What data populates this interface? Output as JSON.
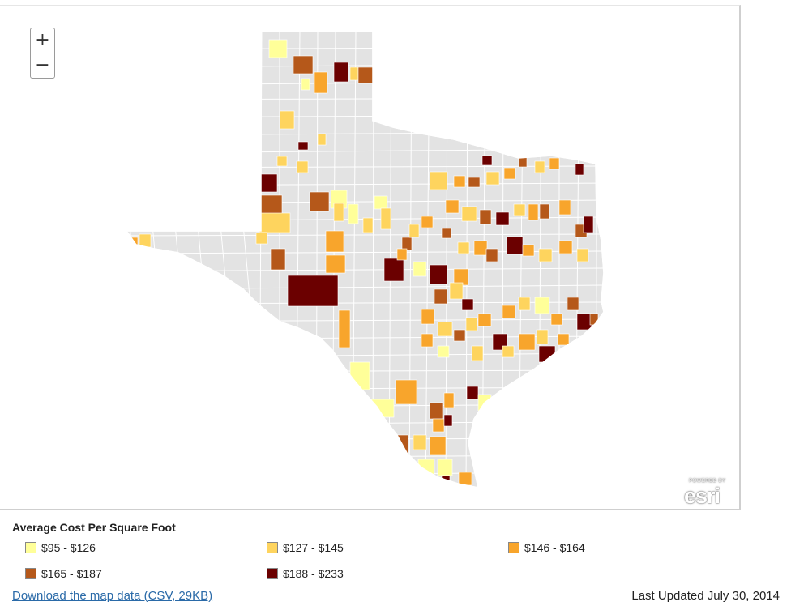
{
  "map": {
    "zoom_in_label": "+",
    "zoom_out_label": "−",
    "attribution_small": "POWERED BY",
    "attribution_big": "esri",
    "state_fill": "#e3e3e3",
    "county_stroke": "#ffffff",
    "region": "Texas"
  },
  "legend": {
    "title": "Average Cost Per Square Foot",
    "items": [
      {
        "label": "$95 - $126",
        "color": "#ffff99"
      },
      {
        "label": "$127 - $145",
        "color": "#fed45e"
      },
      {
        "label": "$146 - $164",
        "color": "#f8a52c"
      },
      {
        "label": "$165 - $187",
        "color": "#b5581a"
      },
      {
        "label": "$188 - $233",
        "color": "#6b0000"
      }
    ]
  },
  "footer": {
    "download_label": "Download the map data (CSV, 29KB)",
    "last_updated": "Last Updated July 30, 2014"
  }
}
